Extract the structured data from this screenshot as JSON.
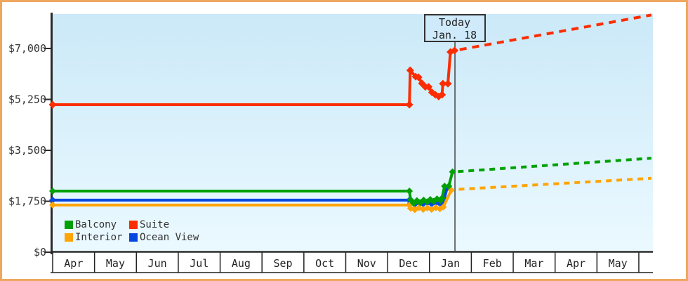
{
  "chart_data": {
    "type": "line",
    "title": "",
    "y_axis": {
      "ticks": [
        {
          "value": 0,
          "label": "$0"
        },
        {
          "value": 1750,
          "label": "$1,750"
        },
        {
          "value": 3500,
          "label": "$3,500"
        },
        {
          "value": 5250,
          "label": "$5,250"
        },
        {
          "value": 7000,
          "label": "$7,000"
        }
      ],
      "range": [
        0,
        8300
      ]
    },
    "x_axis": {
      "months": [
        "Apr",
        "May",
        "Jun",
        "Jul",
        "Aug",
        "Sep",
        "Oct",
        "Nov",
        "Dec",
        "Jan",
        "Feb",
        "Mar",
        "Apr",
        "May"
      ]
    },
    "today": {
      "line1": "Today",
      "line2": "Jan. 18",
      "month_position": 9.6
    },
    "legend": [
      {
        "label": "Balcony",
        "color": "#00a005"
      },
      {
        "label": "Suite",
        "color": "#fb2d01"
      },
      {
        "label": "Interior",
        "color": "#ffa405"
      },
      {
        "label": "Ocean View",
        "color": "#0647e0"
      }
    ],
    "series": [
      {
        "name": "Ocean View",
        "color": "#0647e0",
        "marker": "diamond",
        "solid": [
          [
            0,
            1790
          ],
          [
            8.52,
            1790
          ],
          [
            8.55,
            1690
          ],
          [
            8.65,
            1650
          ],
          [
            8.75,
            1710
          ],
          [
            8.85,
            1660
          ],
          [
            8.95,
            1700
          ],
          [
            9.05,
            1660
          ],
          [
            9.15,
            1690
          ],
          [
            9.25,
            1670
          ],
          [
            9.33,
            1710
          ],
          [
            9.42,
            2200
          ]
        ],
        "dotted": []
      },
      {
        "name": "Interior",
        "color": "#ffa405",
        "marker": "diamond",
        "solid": [
          [
            0,
            1620
          ],
          [
            8.52,
            1620
          ],
          [
            8.55,
            1510
          ],
          [
            8.65,
            1460
          ],
          [
            8.75,
            1530
          ],
          [
            8.85,
            1470
          ],
          [
            8.95,
            1520
          ],
          [
            9.05,
            1470
          ],
          [
            9.15,
            1530
          ],
          [
            9.25,
            1490
          ],
          [
            9.33,
            1550
          ],
          [
            9.52,
            2130
          ]
        ],
        "dotted": [
          [
            9.7,
            2160
          ],
          [
            14.3,
            2540
          ]
        ]
      },
      {
        "name": "Balcony",
        "color": "#00a005",
        "marker": "diamond",
        "solid": [
          [
            0,
            2100
          ],
          [
            8.52,
            2100
          ],
          [
            8.55,
            1800
          ],
          [
            8.62,
            1680
          ],
          [
            8.7,
            1770
          ],
          [
            8.78,
            1700
          ],
          [
            8.86,
            1790
          ],
          [
            8.94,
            1730
          ],
          [
            9.02,
            1810
          ],
          [
            9.1,
            1750
          ],
          [
            9.18,
            1830
          ],
          [
            9.26,
            1780
          ],
          [
            9.3,
            1860
          ],
          [
            9.36,
            2270
          ],
          [
            9.46,
            2270
          ],
          [
            9.55,
            2760
          ]
        ],
        "dotted": [
          [
            9.68,
            2770
          ],
          [
            14.3,
            3230
          ]
        ]
      },
      {
        "name": "Suite",
        "color": "#fb2d01",
        "marker": "diamond",
        "solid": [
          [
            0,
            5070
          ],
          [
            8.52,
            5070
          ],
          [
            8.54,
            6250
          ],
          [
            8.67,
            6030
          ],
          [
            8.74,
            6010
          ],
          [
            8.82,
            5800
          ],
          [
            8.9,
            5680
          ],
          [
            8.98,
            5680
          ],
          [
            9.06,
            5490
          ],
          [
            9.14,
            5410
          ],
          [
            9.22,
            5350
          ],
          [
            9.3,
            5410
          ],
          [
            9.32,
            5790
          ],
          [
            9.44,
            5790
          ],
          [
            9.5,
            6880
          ],
          [
            9.6,
            6930
          ]
        ],
        "dotted": [
          [
            9.72,
            6960
          ],
          [
            14.3,
            8150
          ]
        ]
      }
    ]
  },
  "styles": {
    "plot_bg_top": "#cbe9f8",
    "plot_bg_bottom": "#ebf9ff",
    "outer_border": "#efa75f",
    "axis_color": "#2b2b2b",
    "today_line_color": "#444444",
    "band_bg": "#ffffff"
  }
}
